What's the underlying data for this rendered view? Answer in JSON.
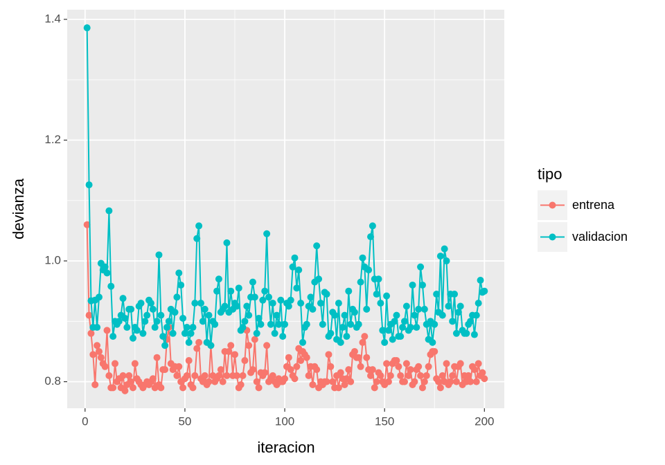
{
  "chart_data": {
    "type": "line",
    "x_label": "iteracion",
    "y_label": "devianza",
    "legend_title": "tipo",
    "x": [
      1,
      2,
      3,
      4,
      5,
      6,
      7,
      8,
      9,
      10,
      11,
      12,
      13,
      14,
      15,
      16,
      17,
      18,
      19,
      20,
      21,
      22,
      23,
      24,
      25,
      26,
      27,
      28,
      29,
      30,
      31,
      32,
      33,
      34,
      35,
      36,
      37,
      38,
      39,
      40,
      41,
      42,
      43,
      44,
      45,
      46,
      47,
      48,
      49,
      50,
      51,
      52,
      53,
      54,
      55,
      56,
      57,
      58,
      59,
      60,
      61,
      62,
      63,
      64,
      65,
      66,
      67,
      68,
      69,
      70,
      71,
      72,
      73,
      74,
      75,
      76,
      77,
      78,
      79,
      80,
      81,
      82,
      83,
      84,
      85,
      86,
      87,
      88,
      89,
      90,
      91,
      92,
      93,
      94,
      95,
      96,
      97,
      98,
      99,
      100,
      101,
      102,
      103,
      104,
      105,
      106,
      107,
      108,
      109,
      110,
      111,
      112,
      113,
      114,
      115,
      116,
      117,
      118,
      119,
      120,
      121,
      122,
      123,
      124,
      125,
      126,
      127,
      128,
      129,
      130,
      131,
      132,
      133,
      134,
      135,
      136,
      137,
      138,
      139,
      140,
      141,
      142,
      143,
      144,
      145,
      146,
      147,
      148,
      149,
      150,
      151,
      152,
      153,
      154,
      155,
      156,
      157,
      158,
      159,
      160,
      161,
      162,
      163,
      164,
      165,
      166,
      167,
      168,
      169,
      170,
      171,
      172,
      173,
      174,
      175,
      176,
      177,
      178,
      179,
      180,
      181,
      182,
      183,
      184,
      185,
      186,
      187,
      188,
      189,
      190,
      191,
      192,
      193,
      194,
      195,
      196,
      197,
      198,
      199,
      200
    ],
    "series": [
      {
        "name": "entrena",
        "color": "#F8766D",
        "values": [
          1.06,
          0.91,
          0.88,
          0.845,
          0.795,
          0.86,
          0.85,
          0.84,
          0.83,
          0.825,
          0.885,
          0.81,
          0.79,
          0.79,
          0.83,
          0.8,
          0.805,
          0.79,
          0.81,
          0.785,
          0.795,
          0.81,
          0.8,
          0.79,
          0.83,
          0.805,
          0.8,
          0.795,
          0.79,
          0.795,
          0.8,
          0.795,
          0.8,
          0.805,
          0.79,
          0.84,
          0.795,
          0.79,
          0.82,
          0.82,
          0.87,
          0.89,
          0.83,
          0.82,
          0.825,
          0.81,
          0.825,
          0.8,
          0.79,
          0.805,
          0.81,
          0.835,
          0.795,
          0.79,
          0.81,
          0.855,
          0.865,
          0.805,
          0.8,
          0.81,
          0.795,
          0.8,
          0.86,
          0.81,
          0.8,
          0.805,
          0.81,
          0.82,
          0.8,
          0.85,
          0.81,
          0.85,
          0.86,
          0.81,
          0.845,
          0.81,
          0.79,
          0.795,
          0.81,
          0.835,
          0.885,
          0.86,
          0.815,
          0.82,
          0.87,
          0.8,
          0.79,
          0.815,
          0.81,
          0.815,
          0.86,
          0.8,
          0.805,
          0.81,
          0.8,
          0.795,
          0.805,
          0.8,
          0.8,
          0.805,
          0.825,
          0.84,
          0.82,
          0.81,
          0.805,
          0.825,
          0.855,
          0.835,
          0.85,
          0.845,
          0.84,
          0.81,
          0.825,
          0.795,
          0.825,
          0.82,
          0.79,
          0.8,
          0.795,
          0.8,
          0.8,
          0.845,
          0.825,
          0.8,
          0.79,
          0.81,
          0.79,
          0.815,
          0.805,
          0.795,
          0.805,
          0.82,
          0.8,
          0.845,
          0.85,
          0.84,
          0.84,
          0.825,
          0.865,
          0.875,
          0.84,
          0.82,
          0.81,
          0.82,
          0.79,
          0.8,
          0.815,
          0.81,
          0.8,
          0.795,
          0.83,
          0.8,
          0.81,
          0.83,
          0.835,
          0.835,
          0.825,
          0.81,
          0.8,
          0.8,
          0.83,
          0.81,
          0.82,
          0.795,
          0.8,
          0.82,
          0.825,
          0.81,
          0.79,
          0.8,
          0.81,
          0.825,
          0.845,
          0.85,
          0.85,
          0.805,
          0.8,
          0.79,
          0.81,
          0.8,
          0.83,
          0.795,
          0.8,
          0.81,
          0.825,
          0.8,
          0.825,
          0.83,
          0.795,
          0.81,
          0.8,
          0.81,
          0.8,
          0.825,
          0.82,
          0.8,
          0.83,
          0.81,
          0.815,
          0.805
        ]
      },
      {
        "name": "validacion",
        "color": "#00BFC4",
        "values": [
          1.386,
          1.126,
          0.934,
          0.89,
          0.935,
          0.89,
          0.94,
          0.996,
          0.985,
          0.99,
          0.98,
          1.083,
          0.958,
          0.875,
          0.9,
          0.895,
          0.9,
          0.91,
          0.938,
          0.905,
          0.89,
          0.92,
          0.92,
          0.872,
          0.89,
          0.885,
          0.925,
          0.93,
          0.88,
          0.9,
          0.91,
          0.935,
          0.93,
          0.92,
          0.89,
          0.9,
          1.01,
          0.91,
          0.875,
          0.86,
          0.89,
          0.9,
          0.92,
          0.88,
          0.915,
          0.94,
          0.98,
          0.96,
          0.905,
          0.88,
          0.89,
          0.865,
          0.88,
          0.89,
          0.93,
          1.037,
          1.058,
          0.93,
          0.9,
          0.92,
          0.865,
          0.91,
          0.86,
          0.9,
          0.895,
          0.95,
          0.97,
          0.915,
          0.92,
          0.925,
          1.03,
          0.915,
          0.95,
          0.92,
          0.93,
          0.925,
          0.955,
          0.885,
          0.89,
          0.9,
          0.925,
          0.91,
          0.94,
          0.965,
          0.94,
          0.88,
          0.905,
          0.895,
          0.935,
          0.95,
          1.045,
          0.94,
          0.895,
          0.93,
          0.88,
          0.91,
          0.895,
          0.935,
          0.875,
          0.895,
          0.93,
          0.925,
          0.935,
          0.99,
          1.005,
          0.955,
          0.985,
          0.93,
          0.865,
          0.89,
          0.895,
          0.925,
          0.94,
          0.92,
          0.965,
          1.025,
          0.97,
          0.93,
          0.895,
          0.948,
          0.945,
          0.875,
          0.88,
          0.915,
          0.91,
          0.87,
          0.93,
          0.865,
          0.89,
          0.91,
          0.875,
          0.95,
          0.895,
          0.92,
          0.915,
          0.89,
          0.895,
          0.965,
          1.005,
          0.99,
          0.92,
          0.985,
          1.04,
          1.058,
          0.97,
          0.945,
          0.97,
          0.93,
          0.885,
          0.865,
          0.942,
          0.885,
          0.895,
          0.87,
          0.9,
          0.91,
          0.875,
          0.875,
          0.89,
          0.9,
          0.925,
          0.885,
          0.89,
          0.96,
          0.91,
          0.89,
          0.92,
          0.99,
          0.96,
          0.92,
          0.895,
          0.87,
          0.9,
          0.865,
          0.895,
          0.945,
          0.915,
          1.008,
          0.91,
          1.02,
          1.0,
          0.925,
          0.945,
          0.9,
          0.945,
          0.88,
          0.915,
          0.925,
          0.885,
          0.88,
          0.88,
          0.895,
          0.9,
          0.91,
          0.878,
          0.91,
          0.93,
          0.968,
          0.948,
          0.95
        ]
      }
    ],
    "xlim": [
      -8.95,
      209.95
    ],
    "xticks": [
      0,
      50,
      100,
      150,
      200
    ],
    "ylim": [
      0.756,
      1.416
    ],
    "yticks": [
      0.8,
      {
        "value": 1.0,
        "label": "1.0"
      },
      1.2,
      1.4
    ],
    "grid": true,
    "legend_position": "right"
  }
}
